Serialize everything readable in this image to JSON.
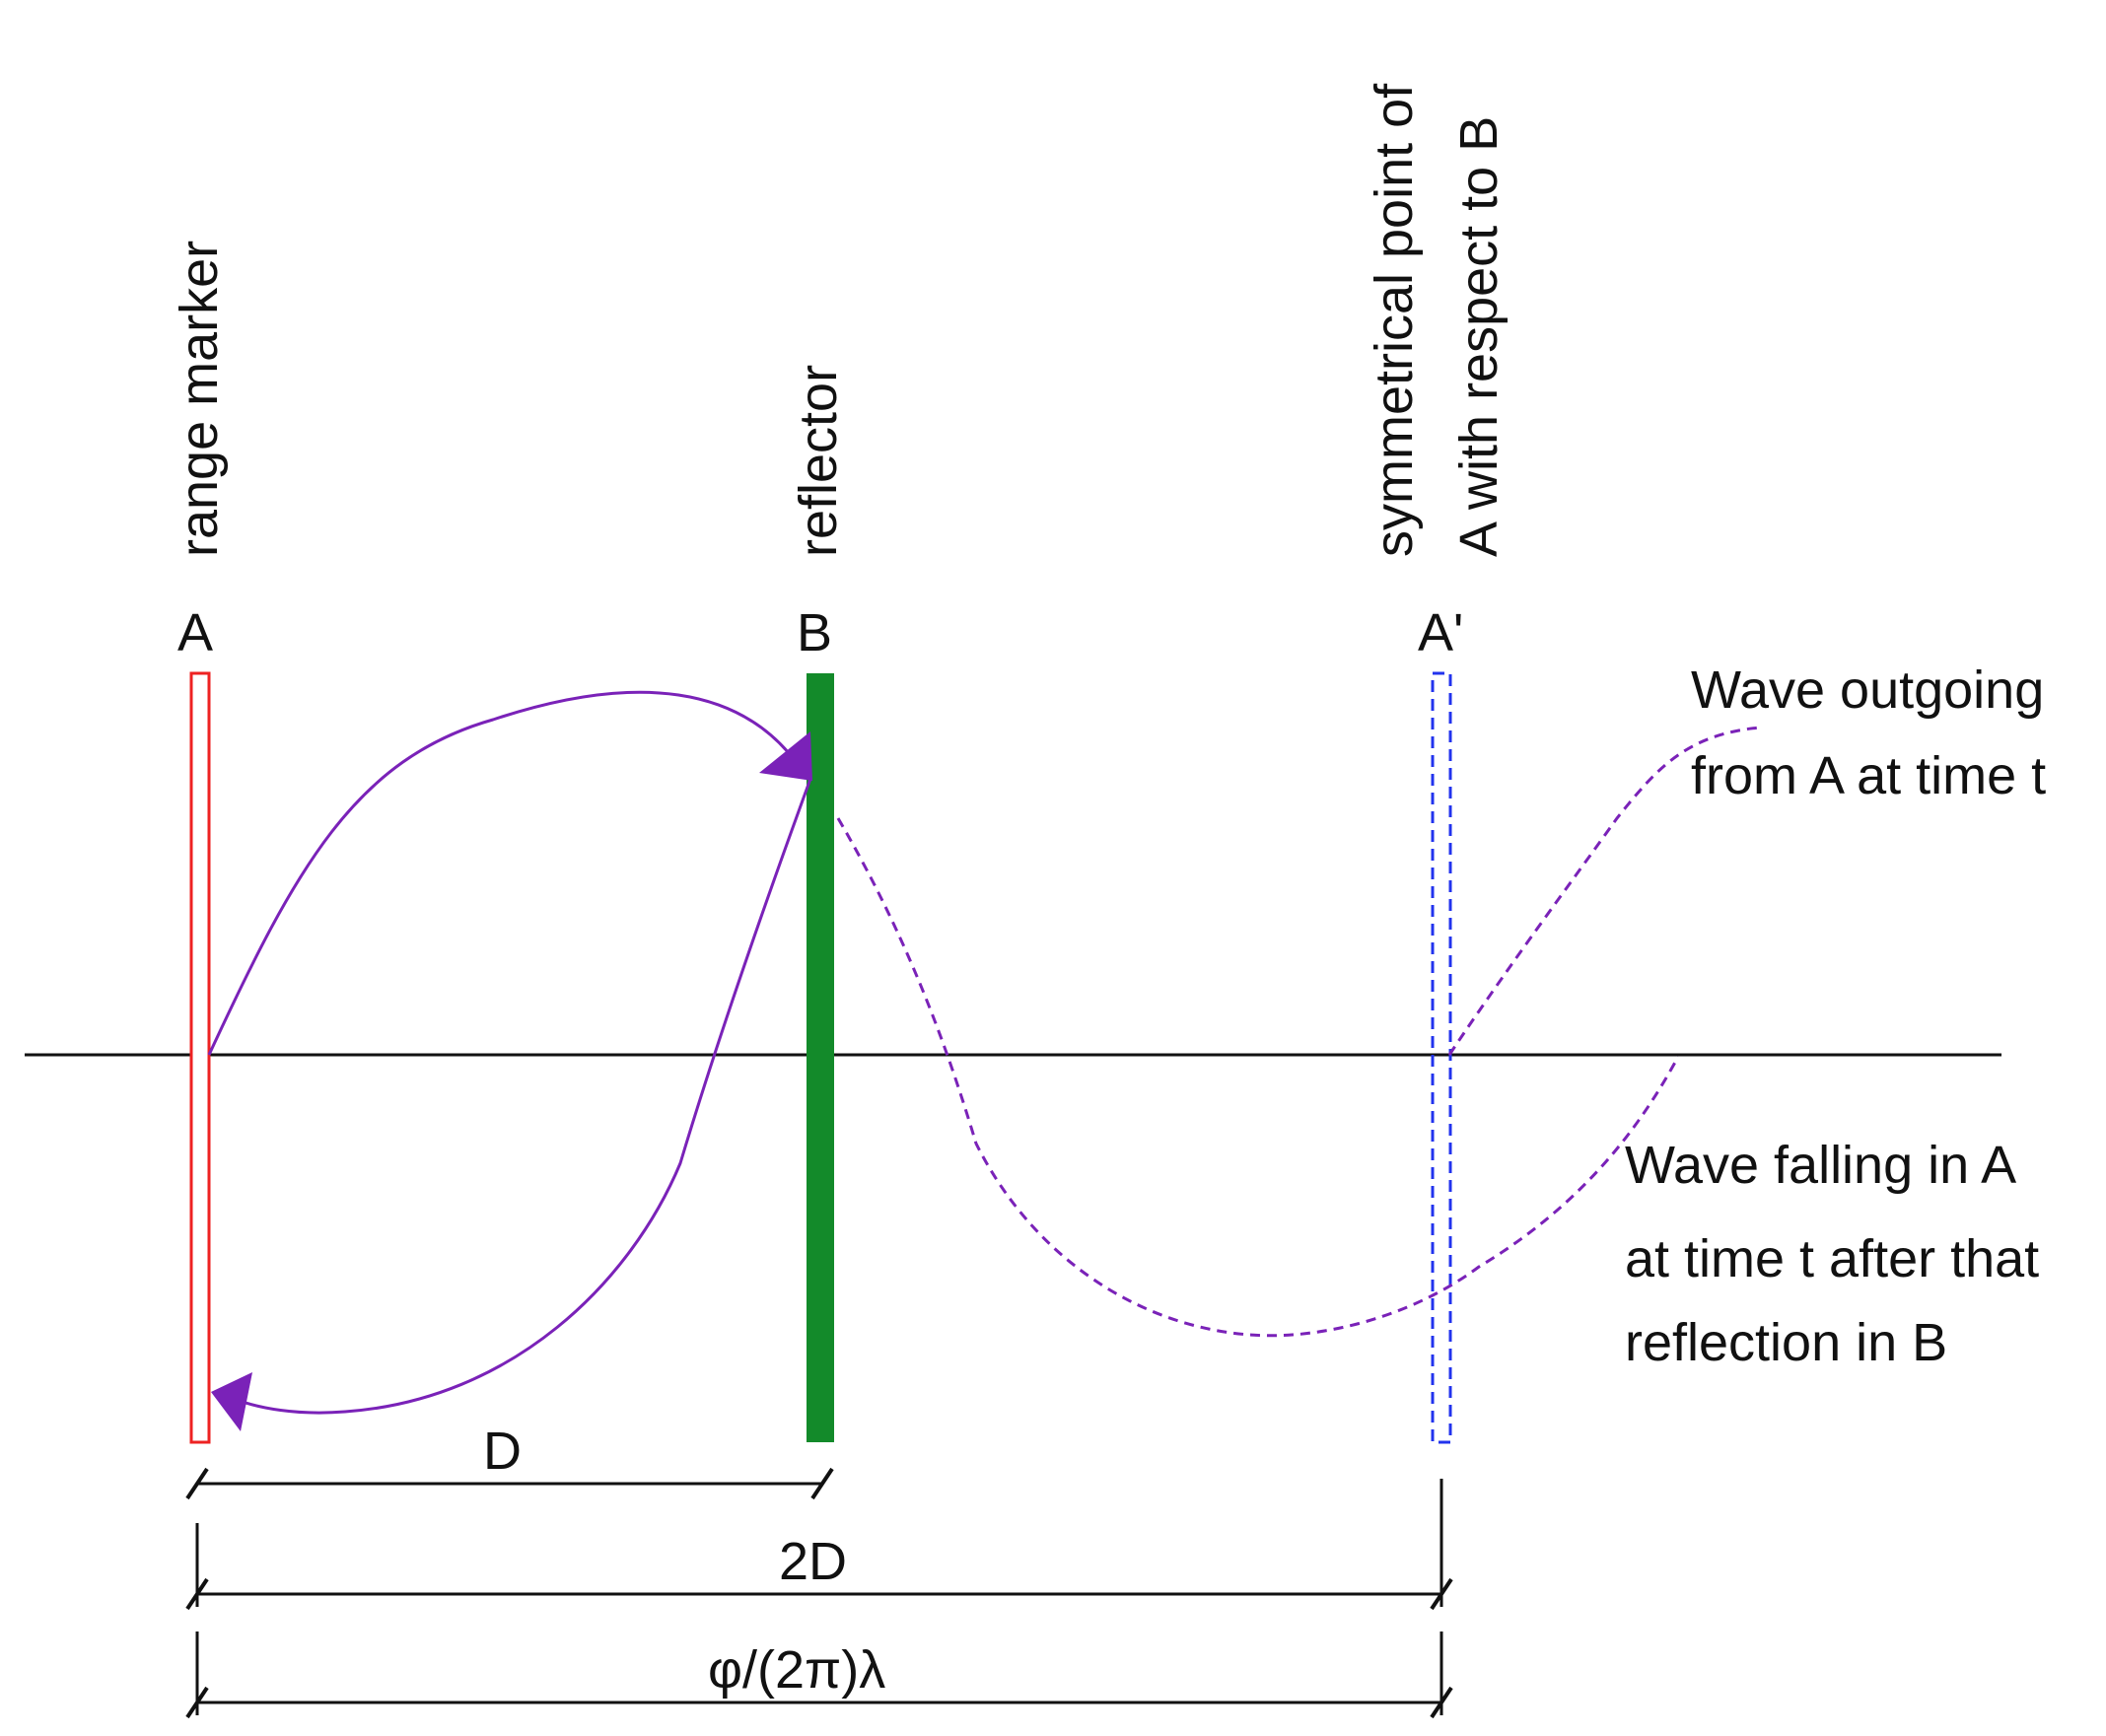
{
  "labels": {
    "range_marker": "range marker",
    "reflector": "reflector",
    "symmetrical_line1": "symmetrical point of",
    "symmetrical_line2": "A with respect to B",
    "point_a": "A",
    "point_b": "B",
    "point_a_prime": "A'",
    "outgoing_line1": "Wave outgoing",
    "outgoing_line2": "from A at time t",
    "falling_line1": "Wave falling in A",
    "falling_line2": "at time t after that",
    "falling_line3": "reflection in B",
    "dim_d": "D",
    "dim_2d": "2D",
    "dim_phase": "φ/(2π)λ"
  },
  "colors": {
    "range_marker": "#ee2222",
    "reflector": "#138a2a",
    "symmetric_marker": "#2233ee",
    "wave": "#7a22b8",
    "lines": "#111111"
  }
}
